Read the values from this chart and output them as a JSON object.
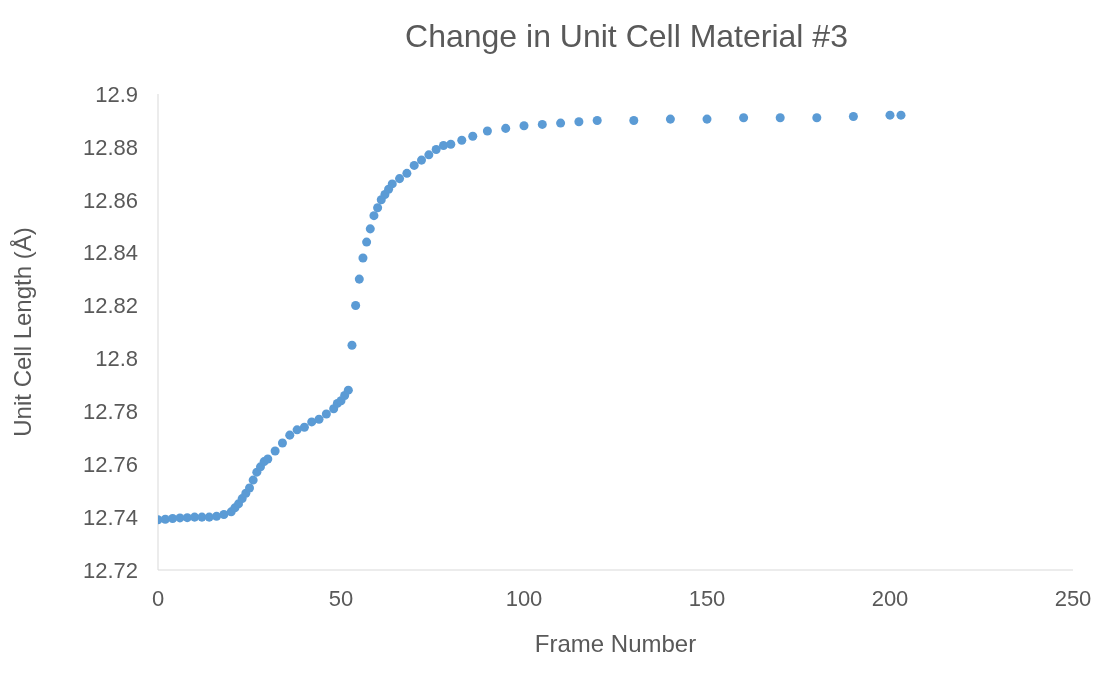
{
  "chart_data": {
    "type": "scatter",
    "title": "Change in Unit Cell Material #3",
    "xlabel": "Frame Number",
    "ylabel": "Unit Cell Length (Å)",
    "marker": "circle",
    "grid": false,
    "xlim": [
      0,
      250
    ],
    "xticks": [
      0,
      50,
      100,
      150,
      200,
      250
    ],
    "ylim": [
      12.72,
      12.9
    ],
    "yticks": [
      12.72,
      12.74,
      12.76,
      12.78,
      12.8,
      12.82,
      12.84,
      12.86,
      12.88,
      12.9
    ],
    "series": [
      {
        "color": "#5b9bd5",
        "x": [
          0,
          2,
          4,
          6,
          8,
          10,
          12,
          14,
          16,
          18,
          20,
          21,
          22,
          23,
          24,
          25,
          26,
          27,
          28,
          29,
          30,
          32,
          34,
          36,
          38,
          40,
          42,
          44,
          46,
          48,
          49,
          50,
          51,
          52,
          53,
          54,
          55,
          56,
          57,
          58,
          59,
          60,
          61,
          62,
          63,
          64,
          66,
          68,
          70,
          72,
          74,
          76,
          78,
          80,
          83,
          86,
          90,
          95,
          100,
          105,
          110,
          115,
          120,
          130,
          140,
          150,
          160,
          170,
          180,
          190,
          200,
          203
        ],
        "values": [
          12.739,
          12.7392,
          12.7395,
          12.7397,
          12.7398,
          12.74,
          12.74,
          12.74,
          12.7403,
          12.741,
          12.742,
          12.7435,
          12.745,
          12.747,
          12.749,
          12.751,
          12.754,
          12.757,
          12.759,
          12.761,
          12.762,
          12.765,
          12.768,
          12.771,
          12.773,
          12.774,
          12.776,
          12.777,
          12.779,
          12.781,
          12.783,
          12.784,
          12.786,
          12.788,
          12.805,
          12.82,
          12.83,
          12.838,
          12.844,
          12.849,
          12.854,
          12.857,
          12.86,
          12.862,
          12.864,
          12.866,
          12.868,
          12.87,
          12.873,
          12.875,
          12.877,
          12.879,
          12.8805,
          12.881,
          12.8825,
          12.884,
          12.886,
          12.887,
          12.888,
          12.8885,
          12.889,
          12.8895,
          12.89,
          12.89,
          12.8905,
          12.8905,
          12.891,
          12.891,
          12.891,
          12.8915,
          12.892,
          12.892
        ]
      }
    ]
  }
}
